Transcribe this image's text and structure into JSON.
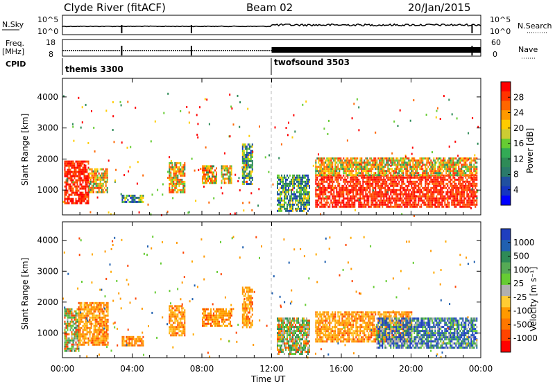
{
  "header": {
    "station": "Clyde River (fitACF)",
    "beam": "Beam 02",
    "date": "20/Jan/2015"
  },
  "top_panels": {
    "nsky_label": "N.Sky",
    "nsky_ticks": [
      "10^5",
      "10^0"
    ],
    "nsearch_label": "N.Search",
    "nsearch_ticks": [
      "10^5",
      "10^0"
    ],
    "freq_label": "Freq.",
    "freq_unit": "[MHz]",
    "freq_ticks": [
      "18",
      "8"
    ],
    "nave_label": "Nave",
    "nave_ticks": [
      "60",
      "0"
    ],
    "cpid_label": "CPID",
    "cpid_segments": [
      {
        "label": "themis 3300",
        "start_hour": 0
      },
      {
        "label": "twofsound 3503",
        "start_hour": 12
      }
    ]
  },
  "colorbars": {
    "power": {
      "label": "Power [dB]",
      "ticks": [
        "28",
        "24",
        "20",
        "16",
        "12",
        "8",
        "4"
      ],
      "colors": [
        "#ff0000",
        "#ff3300",
        "#ff6600",
        "#ff9900",
        "#ffcc00",
        "#cccc33",
        "#66cc33",
        "#33aa55",
        "#2e8b57",
        "#2a7a6a",
        "#2050a0",
        "#1535c0",
        "#0000ff"
      ]
    },
    "velocity": {
      "label": "Velocity [m s⁻¹]",
      "ticks": [
        "1000",
        "500",
        "100",
        "25",
        "-25",
        "-100",
        "-500",
        "-1000"
      ],
      "colors": [
        "#1f3fbf",
        "#2060b0",
        "#2e8b57",
        "#55aa55",
        "#66cc33",
        "#b0b0b0",
        "#ffcc33",
        "#ff9900",
        "#ff7700",
        "#ff4400",
        "#ff0000"
      ]
    }
  },
  "xaxis": {
    "label": "Time UT",
    "ticks": [
      "00:00",
      "04:00",
      "08:00",
      "12:00",
      "16:00",
      "20:00",
      "00:00"
    ]
  },
  "chart_data": [
    {
      "type": "heatmap",
      "quantity": "power",
      "ylabel": "Slant Range [km]",
      "ylim": [
        200,
        4600
      ],
      "xlim_hours": [
        0,
        24
      ],
      "yticks": [
        1000,
        2000,
        3000,
        4000
      ],
      "echo_regions": [
        {
          "t0": 0.1,
          "t1": 1.5,
          "r0": 550,
          "r1": 1950,
          "level": "strong"
        },
        {
          "t0": 1.5,
          "t1": 2.6,
          "r0": 900,
          "r1": 1700,
          "level": "medium"
        },
        {
          "t0": 3.4,
          "t1": 4.6,
          "r0": 600,
          "r1": 850,
          "level": "weak"
        },
        {
          "t0": 6.1,
          "t1": 7.0,
          "r0": 900,
          "r1": 1900,
          "level": "medium"
        },
        {
          "t0": 8.0,
          "t1": 8.8,
          "r0": 1200,
          "r1": 1800,
          "level": "medium"
        },
        {
          "t0": 9.1,
          "t1": 9.7,
          "r0": 1200,
          "r1": 1800,
          "level": "medium"
        },
        {
          "t0": 10.3,
          "t1": 10.9,
          "r0": 1200,
          "r1": 2500,
          "level": "weak"
        },
        {
          "t0": 12.3,
          "t1": 14.2,
          "r0": 300,
          "r1": 1500,
          "level": "weak"
        },
        {
          "t0": 14.5,
          "t1": 23.8,
          "r0": 450,
          "r1": 1500,
          "level": "strong"
        },
        {
          "t0": 14.5,
          "t1": 23.8,
          "r0": 1500,
          "r1": 2050,
          "level": "medium"
        }
      ]
    },
    {
      "type": "heatmap",
      "quantity": "velocity",
      "ylabel": "Slant Range [km]",
      "ylim": [
        200,
        4600
      ],
      "xlim_hours": [
        0,
        24
      ],
      "yticks": [
        1000,
        2000,
        3000,
        4000
      ],
      "echo_regions": [
        {
          "t0": 0.1,
          "t1": 0.9,
          "r0": 400,
          "r1": 1800,
          "level": "mixed"
        },
        {
          "t0": 0.9,
          "t1": 2.6,
          "r0": 600,
          "r1": 2000,
          "level": "negative"
        },
        {
          "t0": 3.4,
          "t1": 4.6,
          "r0": 600,
          "r1": 900,
          "level": "negative"
        },
        {
          "t0": 6.1,
          "t1": 7.0,
          "r0": 900,
          "r1": 1900,
          "level": "negative"
        },
        {
          "t0": 8.0,
          "t1": 9.7,
          "r0": 1200,
          "r1": 1800,
          "level": "negative"
        },
        {
          "t0": 10.3,
          "t1": 10.9,
          "r0": 1200,
          "r1": 2500,
          "level": "negative"
        },
        {
          "t0": 12.3,
          "t1": 14.2,
          "r0": 300,
          "r1": 1500,
          "level": "mixed"
        },
        {
          "t0": 14.5,
          "t1": 20.0,
          "r0": 700,
          "r1": 1700,
          "level": "negative"
        },
        {
          "t0": 18.0,
          "t1": 23.8,
          "r0": 500,
          "r1": 1500,
          "level": "positive"
        }
      ]
    }
  ]
}
